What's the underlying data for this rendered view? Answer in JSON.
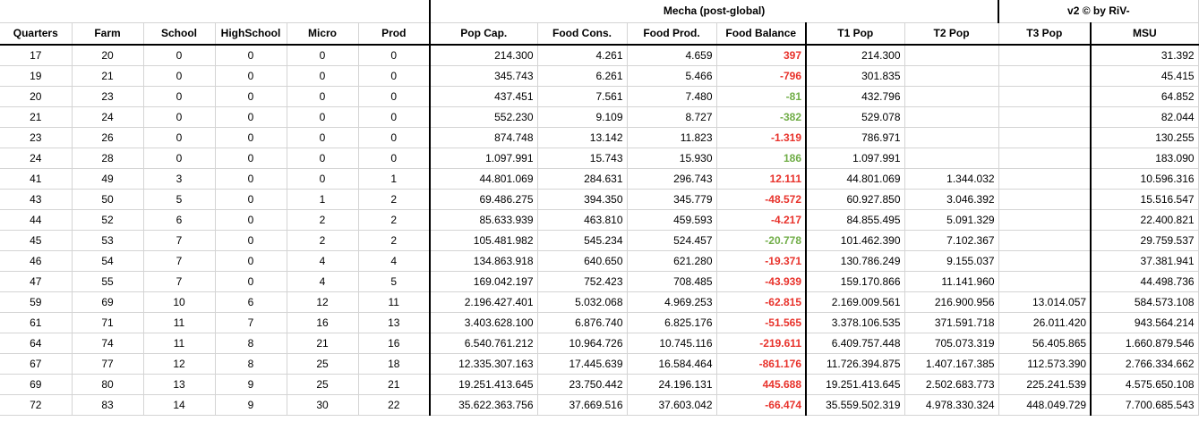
{
  "sheet": {
    "title": "Mecha (post-global)",
    "credit": "v2 © by RiV-",
    "columns": [
      "Quarters",
      "Farm",
      "School",
      "HighSchool",
      "Micro",
      "Prod",
      "Pop Cap.",
      "Food Cons.",
      "Food Prod.",
      "Food Balance",
      "T1 Pop",
      "T2 Pop",
      "T3 Pop",
      "MSU"
    ],
    "colors": {
      "negative": "#e8322b",
      "positive_small": "#70ad47",
      "grid": "#d4d4d4"
    },
    "rows": [
      {
        "cells": [
          "17",
          "20",
          "0",
          "0",
          "0",
          "0",
          "214.300",
          "4.261",
          "4.659",
          "397",
          "214.300",
          "",
          "",
          "31.392"
        ],
        "balance_color": "red"
      },
      {
        "cells": [
          "19",
          "21",
          "0",
          "0",
          "0",
          "0",
          "345.743",
          "6.261",
          "5.466",
          "-796",
          "301.835",
          "",
          "",
          "45.415"
        ],
        "balance_color": "red"
      },
      {
        "cells": [
          "20",
          "23",
          "0",
          "0",
          "0",
          "0",
          "437.451",
          "7.561",
          "7.480",
          "-81",
          "432.796",
          "",
          "",
          "64.852"
        ],
        "balance_color": "green"
      },
      {
        "cells": [
          "21",
          "24",
          "0",
          "0",
          "0",
          "0",
          "552.230",
          "9.109",
          "8.727",
          "-382",
          "529.078",
          "",
          "",
          "82.044"
        ],
        "balance_color": "green"
      },
      {
        "cells": [
          "23",
          "26",
          "0",
          "0",
          "0",
          "0",
          "874.748",
          "13.142",
          "11.823",
          "-1.319",
          "786.971",
          "",
          "",
          "130.255"
        ],
        "balance_color": "red"
      },
      {
        "cells": [
          "24",
          "28",
          "0",
          "0",
          "0",
          "0",
          "1.097.991",
          "15.743",
          "15.930",
          "186",
          "1.097.991",
          "",
          "",
          "183.090"
        ],
        "balance_color": "green"
      },
      {
        "cells": [
          "41",
          "49",
          "3",
          "0",
          "0",
          "1",
          "44.801.069",
          "284.631",
          "296.743",
          "12.111",
          "44.801.069",
          "1.344.032",
          "",
          "10.596.316"
        ],
        "balance_color": "red"
      },
      {
        "cells": [
          "43",
          "50",
          "5",
          "0",
          "1",
          "2",
          "69.486.275",
          "394.350",
          "345.779",
          "-48.572",
          "60.927.850",
          "3.046.392",
          "",
          "15.516.547"
        ],
        "balance_color": "red"
      },
      {
        "cells": [
          "44",
          "52",
          "6",
          "0",
          "2",
          "2",
          "85.633.939",
          "463.810",
          "459.593",
          "-4.217",
          "84.855.495",
          "5.091.329",
          "",
          "22.400.821"
        ],
        "balance_color": "red"
      },
      {
        "cells": [
          "45",
          "53",
          "7",
          "0",
          "2",
          "2",
          "105.481.982",
          "545.234",
          "524.457",
          "-20.778",
          "101.462.390",
          "7.102.367",
          "",
          "29.759.537"
        ],
        "balance_color": "green"
      },
      {
        "cells": [
          "46",
          "54",
          "7",
          "0",
          "4",
          "4",
          "134.863.918",
          "640.650",
          "621.280",
          "-19.371",
          "130.786.249",
          "9.155.037",
          "",
          "37.381.941"
        ],
        "balance_color": "red"
      },
      {
        "cells": [
          "47",
          "55",
          "7",
          "0",
          "4",
          "5",
          "169.042.197",
          "752.423",
          "708.485",
          "-43.939",
          "159.170.866",
          "11.141.960",
          "",
          "44.498.736"
        ],
        "balance_color": "red"
      },
      {
        "cells": [
          "59",
          "69",
          "10",
          "6",
          "12",
          "11",
          "2.196.427.401",
          "5.032.068",
          "4.969.253",
          "-62.815",
          "2.169.009.561",
          "216.900.956",
          "13.014.057",
          "584.573.108"
        ],
        "balance_color": "red"
      },
      {
        "cells": [
          "61",
          "71",
          "11",
          "7",
          "16",
          "13",
          "3.403.628.100",
          "6.876.740",
          "6.825.176",
          "-51.565",
          "3.378.106.535",
          "371.591.718",
          "26.011.420",
          "943.564.214"
        ],
        "balance_color": "red"
      },
      {
        "cells": [
          "64",
          "74",
          "11",
          "8",
          "21",
          "16",
          "6.540.761.212",
          "10.964.726",
          "10.745.116",
          "-219.611",
          "6.409.757.448",
          "705.073.319",
          "56.405.865",
          "1.660.879.546"
        ],
        "balance_color": "red"
      },
      {
        "cells": [
          "67",
          "77",
          "12",
          "8",
          "25",
          "18",
          "12.335.307.163",
          "17.445.639",
          "16.584.464",
          "-861.176",
          "11.726.394.875",
          "1.407.167.385",
          "112.573.390",
          "2.766.334.662"
        ],
        "balance_color": "red"
      },
      {
        "cells": [
          "69",
          "80",
          "13",
          "9",
          "25",
          "21",
          "19.251.413.645",
          "23.750.442",
          "24.196.131",
          "445.688",
          "19.251.413.645",
          "2.502.683.773",
          "225.241.539",
          "4.575.650.108"
        ],
        "balance_color": "red"
      },
      {
        "cells": [
          "72",
          "83",
          "14",
          "9",
          "30",
          "22",
          "35.622.363.756",
          "37.669.516",
          "37.603.042",
          "-66.474",
          "35.559.502.319",
          "4.978.330.324",
          "448.049.729",
          "7.700.685.543"
        ],
        "balance_color": "red"
      }
    ]
  }
}
